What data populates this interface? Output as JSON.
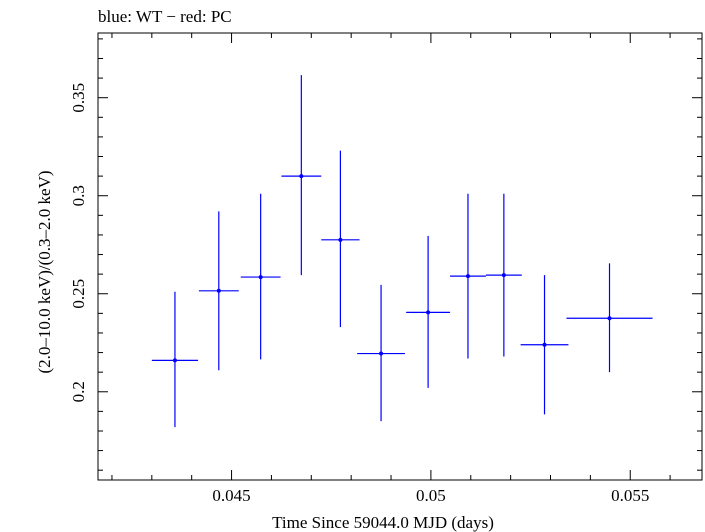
{
  "chart_data": {
    "type": "scatter",
    "title": "blue: WT − red: PC",
    "xlabel": "Time Since 59044.0 MJD (days)",
    "ylabel": "(2.0–10.0 keV)/(0.3–2.0 keV)",
    "xlim": [
      0.04165,
      0.0568
    ],
    "ylim": [
      0.155,
      0.383
    ],
    "x_ticks": [
      0.045,
      0.05,
      0.055
    ],
    "x_tick_labels": [
      "0.045",
      "0.05",
      "0.055"
    ],
    "y_ticks": [
      0.2,
      0.25,
      0.3,
      0.35
    ],
    "y_tick_labels": [
      "0.2",
      "0.25",
      "0.3",
      "0.35"
    ],
    "series": [
      {
        "color": "#0000ff",
        "points": [
          {
            "x": 0.04358,
            "y": 0.216,
            "xerr": 0.00058,
            "yerr_low": 0.034,
            "yerr_high": 0.035
          },
          {
            "x": 0.04468,
            "y": 0.2515,
            "xerr": 0.0005,
            "yerr_low": 0.0405,
            "yerr_high": 0.0405
          },
          {
            "x": 0.04573,
            "y": 0.2585,
            "xerr": 0.0005,
            "yerr_low": 0.042,
            "yerr_high": 0.0425
          },
          {
            "x": 0.04675,
            "y": 0.31,
            "xerr": 0.0005,
            "yerr_low": 0.0505,
            "yerr_high": 0.0515
          },
          {
            "x": 0.04773,
            "y": 0.2775,
            "xerr": 0.00048,
            "yerr_low": 0.0445,
            "yerr_high": 0.0455
          },
          {
            "x": 0.04875,
            "y": 0.2195,
            "xerr": 0.0006,
            "yerr_low": 0.0345,
            "yerr_high": 0.035
          },
          {
            "x": 0.04993,
            "y": 0.2405,
            "xerr": 0.00055,
            "yerr_low": 0.0385,
            "yerr_high": 0.039
          },
          {
            "x": 0.05093,
            "y": 0.259,
            "xerr": 0.00045,
            "yerr_low": 0.042,
            "yerr_high": 0.042
          },
          {
            "x": 0.05183,
            "y": 0.2595,
            "xerr": 0.00045,
            "yerr_low": 0.0415,
            "yerr_high": 0.0415
          },
          {
            "x": 0.05285,
            "y": 0.224,
            "xerr": 0.0006,
            "yerr_low": 0.0355,
            "yerr_high": 0.0355
          },
          {
            "x": 0.05448,
            "y": 0.2375,
            "xerr": 0.00108,
            "yerr_low": 0.0275,
            "yerr_high": 0.028
          }
        ]
      }
    ]
  }
}
